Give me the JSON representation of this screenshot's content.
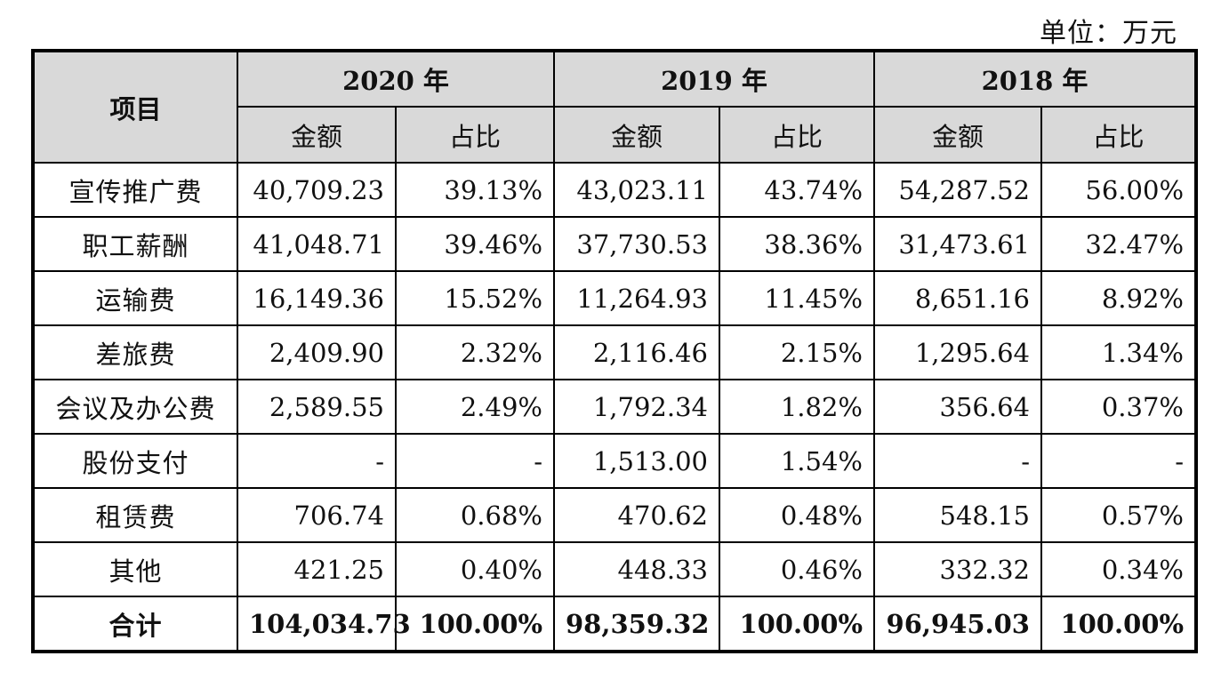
{
  "unit_label": "单位：万元",
  "header": {
    "item": "项目",
    "years": [
      "2020 年",
      "2019 年",
      "2018 年"
    ],
    "amount": "金额",
    "ratio": "占比"
  },
  "rows": [
    {
      "name": "宣传推广费",
      "v": [
        "40,709.23",
        "39.13%",
        "43,023.11",
        "43.74%",
        "54,287.52",
        "56.00%"
      ]
    },
    {
      "name": "职工薪酬",
      "v": [
        "41,048.71",
        "39.46%",
        "37,730.53",
        "38.36%",
        "31,473.61",
        "32.47%"
      ]
    },
    {
      "name": "运输费",
      "v": [
        "16,149.36",
        "15.52%",
        "11,264.93",
        "11.45%",
        "8,651.16",
        "8.92%"
      ]
    },
    {
      "name": "差旅费",
      "v": [
        "2,409.90",
        "2.32%",
        "2,116.46",
        "2.15%",
        "1,295.64",
        "1.34%"
      ]
    },
    {
      "name": "会议及办公费",
      "v": [
        "2,589.55",
        "2.49%",
        "1,792.34",
        "1.82%",
        "356.64",
        "0.37%"
      ]
    },
    {
      "name": "股份支付",
      "v": [
        "-",
        "-",
        "1,513.00",
        "1.54%",
        "-",
        "-"
      ]
    },
    {
      "name": "租赁费",
      "v": [
        "706.74",
        "0.68%",
        "470.62",
        "0.48%",
        "548.15",
        "0.57%"
      ]
    },
    {
      "name": "其他",
      "v": [
        "421.25",
        "0.40%",
        "448.33",
        "0.46%",
        "332.32",
        "0.34%"
      ]
    }
  ],
  "total": {
    "name": "合计",
    "v": [
      "104,034.73",
      "100.00%",
      "98,359.32",
      "100.00%",
      "96,945.03",
      "100.00%"
    ]
  }
}
